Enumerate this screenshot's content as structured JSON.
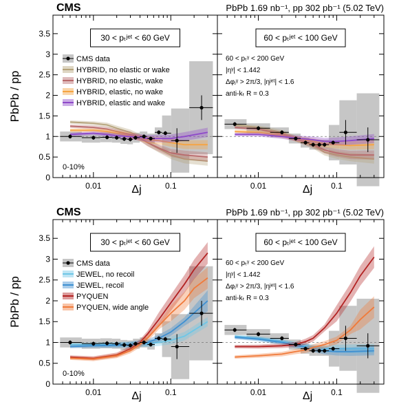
{
  "figure": {
    "cms_label": "CMS",
    "lumi": "PbPb 1.69 nb⁻¹, pp 302 pb⁻¹ (5.02 TeV)",
    "ylabel": "PbPb / pp",
    "xlabel": "Δj",
    "centrality": "0-10%",
    "left_bin": "30 < pₜʲᵉᵗ < 60 GeV",
    "right_bin": "60 < pₜʲᵉᵗ < 100 GeV",
    "cuts": [
      "60 < pₜᵞ < 200 GeV",
      "|ηᵞ| < 1.442",
      "Δφⱼᵞ > 2π/3, |ηʲᵉᵗ| < 1.6",
      "anti-kₜ R = 0.3"
    ],
    "yticks": [
      "0",
      "0.5",
      "1",
      "1.5",
      "2",
      "2.5",
      "3",
      "3.5"
    ],
    "xticks": [
      "0.01",
      "0.1"
    ]
  },
  "chart_data": [
    {
      "type": "line",
      "panel": "top-left",
      "xlim": [
        0.003,
        0.4
      ],
      "ylim": [
        0,
        3.95
      ],
      "x_scale": "log",
      "legend": [
        "CMS data",
        "HYBRID, no elastic or wake",
        "HYBRID, no elastic, wake",
        "HYBRID, elastic, no wake",
        "HYBRID, elastic and wake"
      ],
      "data": {
        "x": [
          0.005,
          0.01,
          0.015,
          0.02,
          0.025,
          0.03,
          0.035,
          0.045,
          0.055,
          0.07,
          0.085,
          0.12,
          0.25
        ],
        "y": [
          1.0,
          0.97,
          0.98,
          0.97,
          0.94,
          0.93,
          0.97,
          1.0,
          0.95,
          1.1,
          1.08,
          0.9,
          1.7
        ]
      },
      "series": [
        {
          "name": "HYBRID, no elastic or wake",
          "color": "#b5a37a",
          "x": [
            0.005,
            0.01,
            0.015,
            0.02,
            0.03,
            0.04,
            0.05,
            0.07,
            0.1,
            0.15,
            0.3
          ],
          "y": [
            1.35,
            1.32,
            1.28,
            1.2,
            1.1,
            0.98,
            0.85,
            0.7,
            0.55,
            0.45,
            0.4
          ]
        },
        {
          "name": "HYBRID, no elastic, wake",
          "color": "#b8696b",
          "x": [
            0.005,
            0.01,
            0.015,
            0.02,
            0.03,
            0.04,
            0.05,
            0.07,
            0.1,
            0.15,
            0.3
          ],
          "y": [
            1.25,
            1.22,
            1.18,
            1.12,
            1.05,
            0.96,
            0.85,
            0.72,
            0.6,
            0.55,
            0.5
          ]
        },
        {
          "name": "HYBRID, elastic, no wake",
          "color": "#f5a442",
          "x": [
            0.005,
            0.01,
            0.015,
            0.02,
            0.03,
            0.04,
            0.05,
            0.07,
            0.1,
            0.15,
            0.3
          ],
          "y": [
            1.15,
            1.15,
            1.12,
            1.08,
            1.02,
            0.97,
            0.92,
            0.9,
            0.85,
            0.8,
            0.8
          ]
        },
        {
          "name": "HYBRID, elastic and wake",
          "color": "#8e49c9",
          "x": [
            0.005,
            0.01,
            0.015,
            0.02,
            0.03,
            0.04,
            0.05,
            0.07,
            0.1,
            0.15,
            0.3
          ],
          "y": [
            1.05,
            1.08,
            1.05,
            1.02,
            1.0,
            0.98,
            0.95,
            0.95,
            0.95,
            1.0,
            1.1
          ]
        }
      ]
    },
    {
      "type": "line",
      "panel": "top-right",
      "xlim": [
        0.003,
        0.4
      ],
      "ylim": [
        0,
        3.95
      ],
      "x_scale": "log",
      "data": {
        "x": [
          0.005,
          0.01,
          0.02,
          0.03,
          0.04,
          0.05,
          0.06,
          0.07,
          0.09,
          0.13,
          0.25
        ],
        "y": [
          1.3,
          1.2,
          1.1,
          0.95,
          0.85,
          0.8,
          0.8,
          0.8,
          0.85,
          1.1,
          0.92
        ]
      },
      "series": [
        {
          "name": "HYBRID, no elastic or wake",
          "color": "#b5a37a",
          "x": [
            0.005,
            0.01,
            0.02,
            0.03,
            0.05,
            0.07,
            0.1,
            0.15,
            0.3
          ],
          "y": [
            1.28,
            1.22,
            1.1,
            0.95,
            0.78,
            0.62,
            0.55,
            0.5,
            0.45
          ]
        },
        {
          "name": "HYBRID, no elastic, wake",
          "color": "#b8696b",
          "x": [
            0.005,
            0.01,
            0.02,
            0.03,
            0.05,
            0.07,
            0.1,
            0.15,
            0.3
          ],
          "y": [
            1.22,
            1.18,
            1.06,
            0.94,
            0.8,
            0.67,
            0.6,
            0.55,
            0.55
          ]
        },
        {
          "name": "HYBRID, elastic, no wake",
          "color": "#f5a442",
          "x": [
            0.005,
            0.01,
            0.02,
            0.03,
            0.05,
            0.07,
            0.1,
            0.15,
            0.3
          ],
          "y": [
            1.12,
            1.1,
            1.02,
            0.95,
            0.88,
            0.82,
            0.8,
            0.78,
            0.8
          ]
        },
        {
          "name": "HYBRID, elastic and wake",
          "color": "#8e49c9",
          "x": [
            0.005,
            0.01,
            0.02,
            0.03,
            0.05,
            0.07,
            0.1,
            0.15,
            0.3
          ],
          "y": [
            1.05,
            1.05,
            1.0,
            0.96,
            0.92,
            0.88,
            0.88,
            0.9,
            0.95
          ]
        }
      ]
    },
    {
      "type": "line",
      "panel": "bottom-left",
      "xlim": [
        0.003,
        0.4
      ],
      "ylim": [
        0,
        3.95
      ],
      "x_scale": "log",
      "legend": [
        "CMS data",
        "JEWEL, no recoil",
        "JEWEL, recoil",
        "PYQUEN",
        "PYQUEN, wide angle"
      ],
      "data": {
        "x": [
          0.005,
          0.01,
          0.015,
          0.02,
          0.025,
          0.03,
          0.035,
          0.045,
          0.055,
          0.07,
          0.085,
          0.12,
          0.25
        ],
        "y": [
          1.0,
          0.97,
          0.98,
          0.97,
          0.94,
          0.93,
          0.97,
          1.0,
          0.95,
          1.1,
          1.08,
          0.9,
          1.7
        ]
      },
      "series": [
        {
          "name": "JEWEL, no recoil",
          "color": "#6ec6e6",
          "x": [
            0.005,
            0.01,
            0.02,
            0.03,
            0.05,
            0.07,
            0.1,
            0.15,
            0.3
          ],
          "y": [
            0.95,
            0.95,
            0.95,
            0.95,
            0.97,
            1.0,
            1.05,
            1.15,
            1.5
          ]
        },
        {
          "name": "JEWEL, recoil",
          "color": "#3d8fd1",
          "x": [
            0.005,
            0.01,
            0.02,
            0.03,
            0.05,
            0.07,
            0.1,
            0.15,
            0.3
          ],
          "y": [
            0.9,
            0.92,
            0.93,
            0.95,
            1.0,
            1.1,
            1.25,
            1.5,
            2.0
          ]
        },
        {
          "name": "PYQUEN",
          "color": "#b22222",
          "x": [
            0.005,
            0.01,
            0.02,
            0.03,
            0.04,
            0.05,
            0.07,
            0.1,
            0.15,
            0.2,
            0.3
          ],
          "y": [
            0.65,
            0.62,
            0.7,
            0.85,
            1.0,
            1.2,
            1.55,
            1.95,
            2.4,
            2.75,
            3.15
          ]
        },
        {
          "name": "PYQUEN, wide angle",
          "color": "#f07a3a",
          "x": [
            0.005,
            0.01,
            0.02,
            0.03,
            0.04,
            0.05,
            0.07,
            0.1,
            0.15,
            0.2,
            0.3
          ],
          "y": [
            0.62,
            0.6,
            0.68,
            0.8,
            0.95,
            1.1,
            1.4,
            1.7,
            2.0,
            2.3,
            2.55
          ]
        }
      ]
    },
    {
      "type": "line",
      "panel": "bottom-right",
      "xlim": [
        0.003,
        0.4
      ],
      "ylim": [
        0,
        3.95
      ],
      "x_scale": "log",
      "data": {
        "x": [
          0.005,
          0.01,
          0.02,
          0.03,
          0.04,
          0.05,
          0.06,
          0.07,
          0.09,
          0.13,
          0.25
        ],
        "y": [
          1.3,
          1.2,
          1.1,
          0.95,
          0.85,
          0.8,
          0.8,
          0.8,
          0.85,
          1.1,
          0.92
        ]
      },
      "series": [
        {
          "name": "JEWEL, no recoil",
          "color": "#6ec6e6",
          "x": [
            0.005,
            0.01,
            0.02,
            0.03,
            0.05,
            0.07,
            0.1,
            0.15,
            0.3
          ],
          "y": [
            1.15,
            1.1,
            1.02,
            0.95,
            0.88,
            0.85,
            0.85,
            0.85,
            0.85
          ]
        },
        {
          "name": "JEWEL, recoil",
          "color": "#3d8fd1",
          "x": [
            0.005,
            0.01,
            0.02,
            0.03,
            0.05,
            0.07,
            0.1,
            0.15,
            0.3
          ],
          "y": [
            1.12,
            1.08,
            1.0,
            0.93,
            0.85,
            0.8,
            0.78,
            0.78,
            0.8
          ]
        },
        {
          "name": "PYQUEN",
          "color": "#b22222",
          "x": [
            0.005,
            0.01,
            0.02,
            0.03,
            0.04,
            0.05,
            0.07,
            0.1,
            0.15,
            0.2,
            0.3
          ],
          "y": [
            0.9,
            0.9,
            0.92,
            0.95,
            1.02,
            1.1,
            1.35,
            1.7,
            2.2,
            2.6,
            3.05
          ]
        },
        {
          "name": "PYQUEN, wide angle",
          "color": "#f07a3a",
          "x": [
            0.005,
            0.01,
            0.02,
            0.03,
            0.04,
            0.05,
            0.07,
            0.1,
            0.15,
            0.2,
            0.3
          ],
          "y": [
            0.65,
            0.68,
            0.72,
            0.78,
            0.82,
            0.88,
            0.95,
            1.05,
            1.3,
            1.55,
            1.85
          ]
        }
      ]
    }
  ]
}
